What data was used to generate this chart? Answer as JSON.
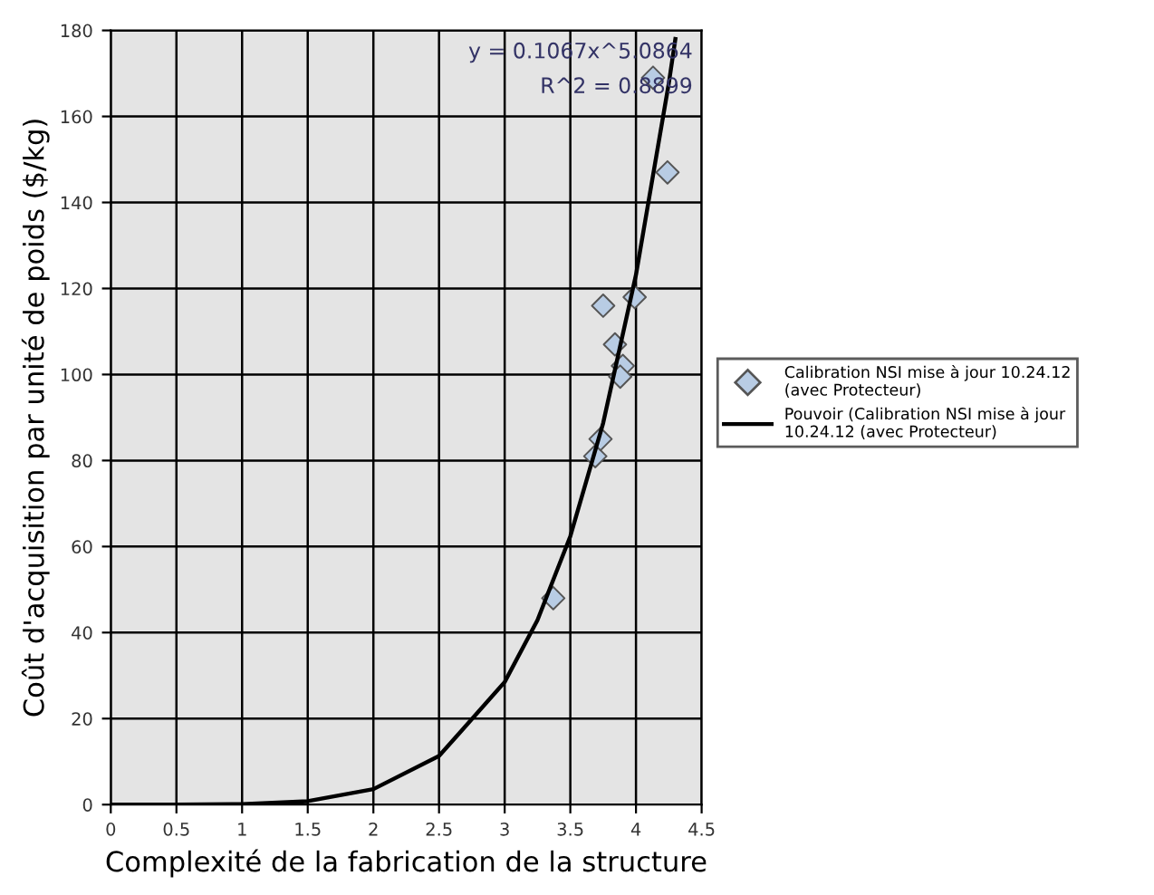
{
  "chart_data": {
    "type": "scatter",
    "xlabel": "Complexité de la fabrication de la structure",
    "ylabel": "Coût d'acquisition par unité de poids ($/kg)",
    "xlim": [
      0,
      4.5
    ],
    "xticks": [
      0,
      0.5,
      1,
      1.5,
      2,
      2.5,
      3,
      3.5,
      4,
      4.5
    ],
    "ylim": [
      0,
      180
    ],
    "yticks": [
      0,
      20,
      40,
      60,
      80,
      100,
      120,
      140,
      160,
      180
    ],
    "grid": true,
    "legend": "right",
    "annotations": [
      "y = 0.1067x^5.0864",
      "R^2 = 0.8899"
    ],
    "series": [
      {
        "name": "Calibration NSI mise à jour 10.24.12 (avec Protecteur)",
        "marker": "diamond",
        "color": "#b8cce4",
        "x": [
          3.37,
          3.69,
          3.73,
          3.75,
          3.84,
          3.9,
          3.88,
          3.99,
          4.24,
          4.13
        ],
        "values": [
          48,
          81,
          85,
          116,
          107,
          102,
          99.5,
          118,
          147,
          169
        ]
      },
      {
        "name": "Pouvoir (Calibration NSI mise à jour 10.24.12 (avec Protecteur)",
        "type": "line",
        "marker": "none",
        "line_style": "solid",
        "color": "#000000",
        "x": [
          0,
          0.5,
          1,
          1.5,
          2,
          2.5,
          3,
          3.25,
          3.5,
          3.75,
          4,
          4.25,
          4.3
        ],
        "values": [
          0,
          0,
          0.1,
          0.8,
          3.6,
          11.3,
          28.5,
          42.9,
          62.4,
          88.7,
          123.2,
          167.7,
          178
        ]
      }
    ]
  }
}
